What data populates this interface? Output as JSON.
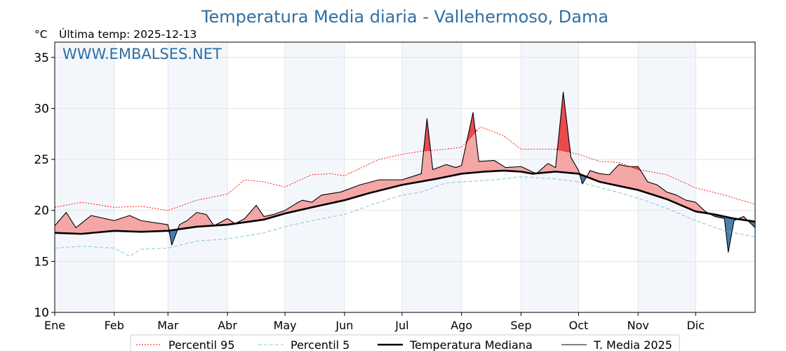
{
  "chart_data": {
    "type": "line",
    "title": "Temperatura Media diaria - Vallehermoso, Dama",
    "unit": "°C",
    "subtitle": "Última temp: 2025-12-13",
    "watermark": "WWW.EMBALSES.NET",
    "ylim": [
      10,
      36.5
    ],
    "yticks": [
      10,
      15,
      20,
      25,
      30,
      35
    ],
    "xlim": [
      1,
      366
    ],
    "months": [
      {
        "label": "Ene",
        "day": 1
      },
      {
        "label": "Feb",
        "day": 32
      },
      {
        "label": "Mar",
        "day": 60
      },
      {
        "label": "Abr",
        "day": 91
      },
      {
        "label": "May",
        "day": 121
      },
      {
        "label": "Jun",
        "day": 152
      },
      {
        "label": "Jul",
        "day": 182
      },
      {
        "label": "Ago",
        "day": 213
      },
      {
        "label": "Sep",
        "day": 244
      },
      {
        "label": "Oct",
        "day": 274
      },
      {
        "label": "Nov",
        "day": 305
      },
      {
        "label": "Dic",
        "day": 335
      }
    ],
    "grid": true,
    "legend_position": "bottom",
    "series": [
      {
        "name": "Percentil 95",
        "color": "#ff0000",
        "style": "dotted",
        "points": [
          [
            1,
            20.3
          ],
          [
            15,
            20.8
          ],
          [
            32,
            20.3
          ],
          [
            46,
            20.4
          ],
          [
            60,
            20.0
          ],
          [
            75,
            21.0
          ],
          [
            91,
            21.6
          ],
          [
            100,
            23.0
          ],
          [
            110,
            22.8
          ],
          [
            121,
            22.3
          ],
          [
            135,
            23.5
          ],
          [
            145,
            23.6
          ],
          [
            152,
            23.4
          ],
          [
            170,
            25.0
          ],
          [
            182,
            25.5
          ],
          [
            192,
            25.8
          ],
          [
            205,
            26.0
          ],
          [
            213,
            26.2
          ],
          [
            223,
            28.2
          ],
          [
            235,
            27.3
          ],
          [
            244,
            26.0
          ],
          [
            250,
            26.0
          ],
          [
            262,
            26.0
          ],
          [
            274,
            25.5
          ],
          [
            285,
            24.8
          ],
          [
            295,
            24.7
          ],
          [
            305,
            24.0
          ],
          [
            320,
            23.5
          ],
          [
            335,
            22.2
          ],
          [
            350,
            21.5
          ],
          [
            366,
            20.6
          ]
        ]
      },
      {
        "name": "Percentil 5",
        "color": "#8ec9dd",
        "style": "dashed",
        "points": [
          [
            1,
            16.3
          ],
          [
            15,
            16.5
          ],
          [
            32,
            16.3
          ],
          [
            40,
            15.5
          ],
          [
            46,
            16.2
          ],
          [
            60,
            16.3
          ],
          [
            75,
            17.0
          ],
          [
            91,
            17.2
          ],
          [
            110,
            17.8
          ],
          [
            121,
            18.4
          ],
          [
            135,
            19.0
          ],
          [
            152,
            19.6
          ],
          [
            170,
            20.8
          ],
          [
            182,
            21.5
          ],
          [
            192,
            21.8
          ],
          [
            205,
            22.7
          ],
          [
            213,
            22.8
          ],
          [
            230,
            23.0
          ],
          [
            244,
            23.3
          ],
          [
            262,
            23.1
          ],
          [
            274,
            22.8
          ],
          [
            290,
            22.0
          ],
          [
            305,
            21.2
          ],
          [
            320,
            20.2
          ],
          [
            335,
            19.0
          ],
          [
            350,
            18.0
          ],
          [
            366,
            17.4
          ]
        ]
      },
      {
        "name": "Temperatura Mediana",
        "color": "#000000",
        "style": "thick",
        "points": [
          [
            1,
            17.8
          ],
          [
            15,
            17.7
          ],
          [
            32,
            18.0
          ],
          [
            46,
            17.9
          ],
          [
            60,
            18.0
          ],
          [
            75,
            18.4
          ],
          [
            91,
            18.6
          ],
          [
            110,
            19.1
          ],
          [
            121,
            19.7
          ],
          [
            135,
            20.3
          ],
          [
            152,
            21.0
          ],
          [
            165,
            21.7
          ],
          [
            182,
            22.5
          ],
          [
            200,
            23.1
          ],
          [
            213,
            23.6
          ],
          [
            225,
            23.8
          ],
          [
            235,
            23.9
          ],
          [
            244,
            23.8
          ],
          [
            250,
            23.6
          ],
          [
            262,
            23.8
          ],
          [
            274,
            23.6
          ],
          [
            285,
            22.8
          ],
          [
            295,
            22.4
          ],
          [
            305,
            22.0
          ],
          [
            320,
            21.1
          ],
          [
            335,
            19.9
          ],
          [
            345,
            19.6
          ],
          [
            355,
            19.2
          ],
          [
            366,
            18.9
          ]
        ]
      },
      {
        "name": "T. Media 2025",
        "color": "#000000",
        "style": "thin",
        "points": [
          [
            1,
            18.5
          ],
          [
            7,
            19.8
          ],
          [
            12,
            18.3
          ],
          [
            20,
            19.5
          ],
          [
            32,
            19.0
          ],
          [
            40,
            19.5
          ],
          [
            46,
            19.0
          ],
          [
            60,
            18.6
          ],
          [
            62,
            16.6
          ],
          [
            66,
            18.6
          ],
          [
            70,
            19.0
          ],
          [
            75,
            19.8
          ],
          [
            80,
            19.6
          ],
          [
            84,
            18.5
          ],
          [
            91,
            19.2
          ],
          [
            95,
            18.7
          ],
          [
            100,
            19.2
          ],
          [
            106,
            20.5
          ],
          [
            110,
            19.4
          ],
          [
            115,
            19.6
          ],
          [
            121,
            20.0
          ],
          [
            127,
            20.7
          ],
          [
            130,
            21.0
          ],
          [
            135,
            20.8
          ],
          [
            140,
            21.5
          ],
          [
            150,
            21.8
          ],
          [
            160,
            22.5
          ],
          [
            170,
            23.0
          ],
          [
            182,
            23.0
          ],
          [
            192,
            23.6
          ],
          [
            195,
            29.0
          ],
          [
            198,
            24.0
          ],
          [
            205,
            24.5
          ],
          [
            210,
            24.2
          ],
          [
            213,
            24.4
          ],
          [
            219,
            29.6
          ],
          [
            222,
            24.8
          ],
          [
            230,
            24.9
          ],
          [
            236,
            24.2
          ],
          [
            244,
            24.3
          ],
          [
            252,
            23.6
          ],
          [
            258,
            24.6
          ],
          [
            262,
            24.2
          ],
          [
            266,
            31.6
          ],
          [
            270,
            25.2
          ],
          [
            274,
            23.9
          ],
          [
            276,
            22.6
          ],
          [
            280,
            23.9
          ],
          [
            285,
            23.6
          ],
          [
            290,
            23.5
          ],
          [
            295,
            24.5
          ],
          [
            300,
            24.3
          ],
          [
            305,
            24.3
          ],
          [
            310,
            22.8
          ],
          [
            315,
            22.5
          ],
          [
            320,
            21.8
          ],
          [
            325,
            21.5
          ],
          [
            330,
            21.0
          ],
          [
            335,
            20.8
          ],
          [
            340,
            19.9
          ],
          [
            345,
            19.4
          ],
          [
            350,
            19.2
          ],
          [
            352,
            15.9
          ],
          [
            355,
            19.0
          ],
          [
            360,
            19.4
          ],
          [
            366,
            18.3
          ]
        ]
      }
    ],
    "legend": [
      "Percentil 95",
      "Percentil 5",
      "Temperatura Mediana",
      "T. Media 2025"
    ],
    "fill_colors": {
      "above_median": "#f4a6a6",
      "above_p95": "#e8484a",
      "below_median": "#4a7fb0"
    }
  }
}
